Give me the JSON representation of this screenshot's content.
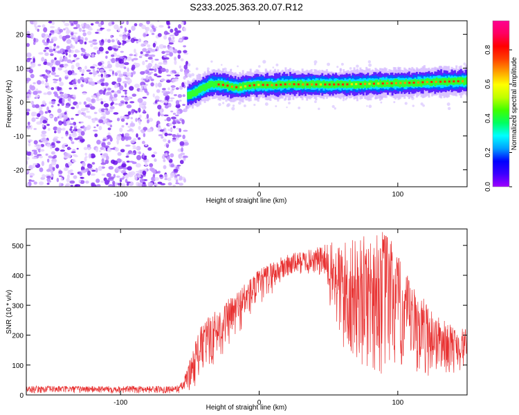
{
  "title": "S233.2025.363.20.07.R12",
  "chart_data": [
    {
      "type": "heatmap",
      "xlabel": "Height of straight line (km)",
      "ylabel": "Frequency (Hz)",
      "xlim": [
        -168,
        150
      ],
      "ylim": [
        -25,
        24
      ],
      "xticks": [
        -100,
        0,
        100
      ],
      "yticks": [
        -20,
        -10,
        0,
        10,
        20
      ],
      "ytick_labels": [
        "-20",
        "-10",
        "0",
        "10",
        "20"
      ],
      "colorbar": {
        "label": "Normalized spectral amplitude",
        "range": [
          0.0,
          0.97
        ],
        "ticks": [
          0.0,
          0.2,
          0.4,
          0.6,
          0.8
        ],
        "tick_labels": [
          "0.0",
          "0.2",
          "0.4",
          "0.6",
          "0.8"
        ],
        "colormap": [
          "#a000ff",
          "#3c00ff",
          "#0000ff",
          "#00a0ff",
          "#00ffff",
          "#00ff60",
          "#40ff00",
          "#c0ff00",
          "#ffff00",
          "#ffa000",
          "#ff4000",
          "#ff0000",
          "#ff0060",
          "#ff0090"
        ]
      },
      "noise_region_x": [
        -168,
        -52
      ],
      "signal_ridge": {
        "x": [
          -52,
          -45,
          -40,
          -35,
          -30,
          -25,
          -20,
          -15,
          -10,
          -5,
          0,
          10,
          20,
          30,
          40,
          50,
          60,
          70,
          80,
          90,
          100,
          110,
          120,
          130,
          140,
          150
        ],
        "y": [
          2.0,
          3.2,
          4.4,
          5.2,
          5.2,
          5.0,
          4.5,
          4.3,
          4.7,
          5.0,
          5.1,
          5.0,
          5.3,
          5.2,
          5.2,
          5.2,
          5.2,
          5.3,
          5.4,
          5.5,
          5.6,
          5.7,
          5.9,
          6.0,
          6.1,
          6.2
        ]
      },
      "grid": false
    },
    {
      "type": "line",
      "xlabel": "Height of straight line (km)",
      "ylabel": "SNR (10 * v/v)",
      "xlim": [
        -168,
        150
      ],
      "ylim": [
        0,
        555
      ],
      "xticks": [
        -100,
        0,
        100
      ],
      "yticks": [
        0,
        100,
        200,
        300,
        400,
        500
      ],
      "color": "#e83030",
      "envelope": {
        "x": [
          -168,
          -60,
          -55,
          -50,
          -45,
          -40,
          -30,
          -20,
          -10,
          0,
          10,
          20,
          30,
          40,
          45,
          50,
          55,
          60,
          70,
          80,
          90,
          95,
          100,
          110,
          120,
          130,
          140,
          150
        ],
        "low": [
          5,
          5,
          5,
          15,
          30,
          60,
          110,
          160,
          230,
          290,
          340,
          380,
          400,
          400,
          380,
          300,
          200,
          100,
          80,
          60,
          40,
          30,
          50,
          50,
          50,
          60,
          70,
          80
        ],
        "high": [
          30,
          30,
          45,
          120,
          200,
          250,
          290,
          330,
          380,
          420,
          450,
          470,
          480,
          490,
          500,
          510,
          510,
          520,
          520,
          540,
          555,
          540,
          470,
          370,
          320,
          260,
          230,
          220
        ]
      },
      "grid": false
    }
  ]
}
